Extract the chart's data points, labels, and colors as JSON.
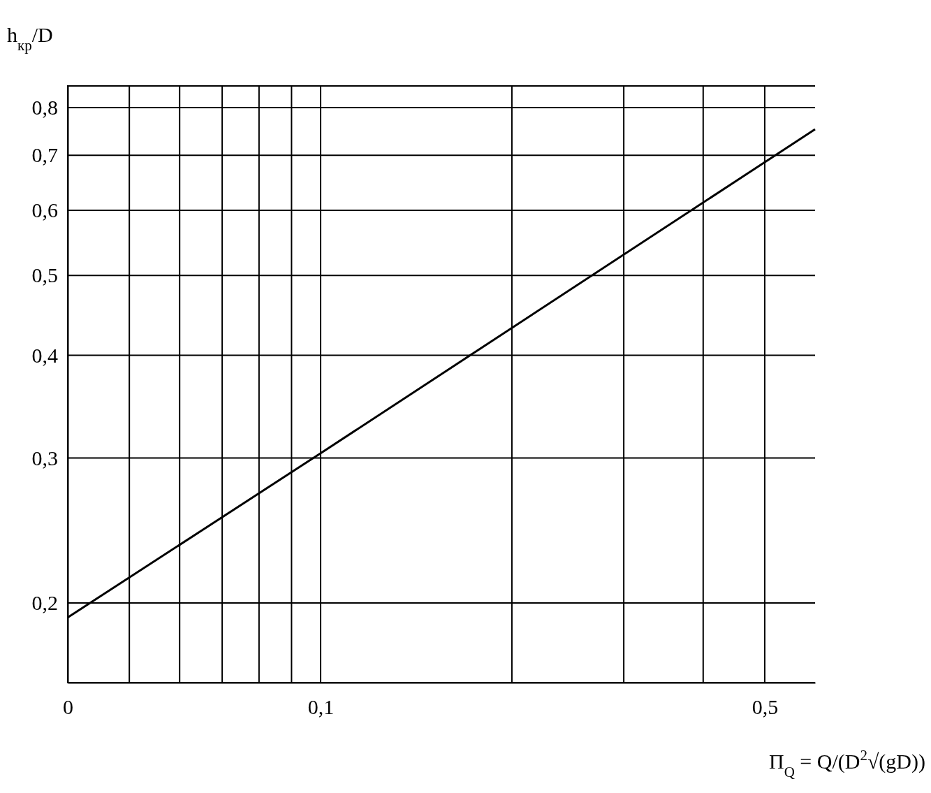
{
  "chart_data": {
    "type": "line",
    "ylabel": "h$_{кр}$/D",
    "xlabel": "Π$_{Q}$ = Q/(D$^{2}$√(gD))",
    "x": [
      0.04,
      0.1,
      0.6
    ],
    "series": [
      {
        "color": "#000000",
        "values": [
          0.192,
          0.304,
          0.753
        ]
      }
    ],
    "log": "xy",
    "xlim": [
      0.04,
      0.6
    ],
    "xticks": [
      {
        "value": 0.04,
        "label": "0"
      },
      {
        "value": 0.05,
        "label": null
      },
      {
        "value": 0.06,
        "label": null
      },
      {
        "value": 0.07,
        "label": null
      },
      {
        "value": 0.08,
        "label": null
      },
      {
        "value": 0.09,
        "label": null
      },
      {
        "value": 0.1,
        "label": "0,1"
      },
      {
        "value": 0.2,
        "label": null
      },
      {
        "value": 0.3,
        "label": null
      },
      {
        "value": 0.4,
        "label": null
      },
      {
        "value": 0.5,
        "label": "0,5"
      }
    ],
    "ylim": [
      0.16,
      0.85
    ],
    "yticks": [
      {
        "value": 0.2,
        "label": "0,2"
      },
      {
        "value": 0.3,
        "label": "0,3"
      },
      {
        "value": 0.4,
        "label": "0,4"
      },
      {
        "value": 0.5,
        "label": "0,5"
      },
      {
        "value": 0.6,
        "label": "0,6"
      },
      {
        "value": 0.7,
        "label": "0,7"
      },
      {
        "value": 0.8,
        "label": "0,8"
      }
    ],
    "grid": true,
    "marker": "none",
    "line_style": "solid"
  }
}
